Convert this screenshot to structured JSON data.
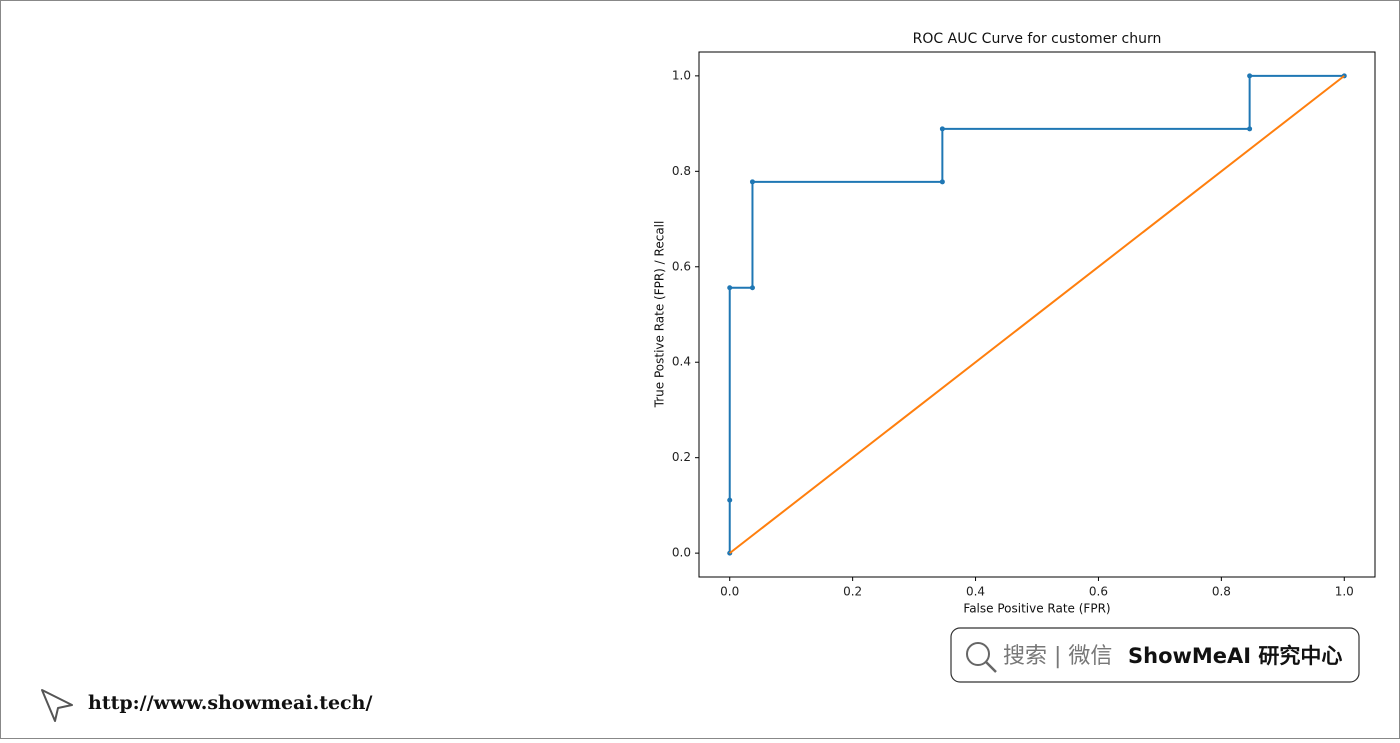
{
  "chart_data": {
    "type": "line",
    "title": "ROC AUC Curve for customer churn",
    "xlabel": "False Positive Rate (FPR)",
    "ylabel": "True Postive Rate (FPR) / Recall",
    "series": [
      {
        "color": "#1f77b4",
        "markers": true,
        "x": [
          0,
          0,
          0,
          0.037,
          0.037,
          0.346,
          0.346,
          0.846,
          0.846,
          1
        ],
        "values": [
          0,
          0.111,
          0.556,
          0.556,
          0.778,
          0.778,
          0.889,
          0.889,
          1,
          1
        ]
      },
      {
        "color": "#ff7f0e",
        "markers": false,
        "x": [
          0,
          1
        ],
        "values": [
          0,
          1
        ]
      }
    ],
    "xlim": [
      -0.05,
      1.05
    ],
    "ylim": [
      -0.05,
      1.05
    ],
    "xticks": [
      {
        "value": 0,
        "label": "0.0"
      },
      0.2,
      0.4,
      0.6,
      0.8,
      {
        "value": 1,
        "label": "1.0"
      }
    ],
    "yticks": [
      {
        "value": 0,
        "label": "0.0"
      },
      0.2,
      0.4,
      0.6,
      0.8,
      {
        "value": 1,
        "label": "1.0"
      }
    ],
    "grid": false
  },
  "badge": {
    "search": "搜索 | 微信",
    "brand": "ShowMeAI 研究中心"
  },
  "footer": {
    "url": "http://www.showmeai.tech/"
  }
}
